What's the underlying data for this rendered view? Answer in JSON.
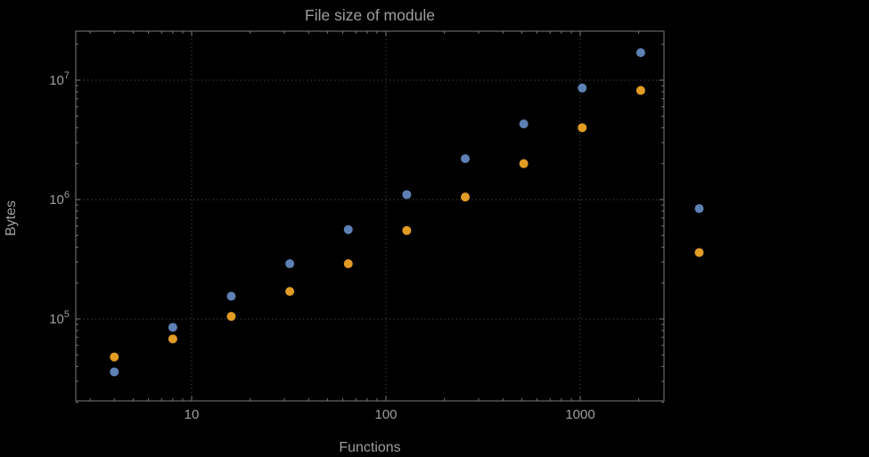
{
  "colors": {
    "background": "#000000",
    "blue_series": "#5e81b5",
    "orange_series": "#e19c24",
    "frame": "#7c7c7c",
    "grid": "#5a5a5a",
    "text": "#9e9e9e"
  },
  "chart_data": {
    "type": "scatter",
    "title": "File size of module",
    "xlabel": "Functions",
    "ylabel": "Bytes",
    "x_scale": "log",
    "y_scale": "log",
    "grid": "dotted",
    "legend_position": "none",
    "x_tick_labels": [
      "10",
      "100",
      "1000"
    ],
    "x_tick_values": [
      10,
      100,
      1000
    ],
    "y_tick_values": [
      100000,
      1000000,
      10000000
    ],
    "y_tick_exponents": [
      "5",
      "6",
      "7"
    ],
    "y_tick_base": "10",
    "x_range": [
      2.5,
      2700
    ],
    "y_range": [
      20000,
      26000000
    ],
    "x": [
      4,
      8,
      16,
      32,
      64,
      128,
      256,
      512,
      1024,
      2048,
      4096
    ],
    "series": [
      {
        "name": "blue",
        "color": "#5e81b5",
        "values": [
          36000,
          85000,
          155000,
          290000,
          560000,
          1100000,
          2200000,
          4300000,
          8600000,
          17000000,
          840000
        ]
      },
      {
        "name": "orange",
        "color": "#e19c24",
        "values": [
          48000,
          68000,
          105000,
          170000,
          290000,
          550000,
          1050000,
          2000000,
          4000000,
          8200000,
          360000
        ]
      }
    ]
  }
}
